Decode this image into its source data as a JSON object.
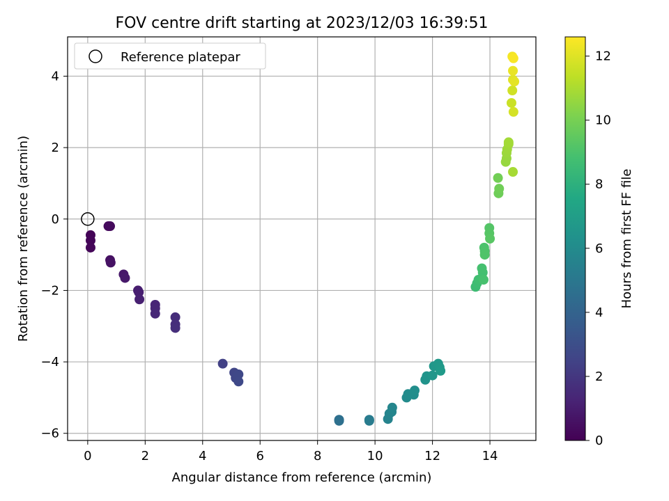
{
  "chart_data": {
    "type": "scatter",
    "title": "FOV centre drift starting at 2023/12/03 16:39:51",
    "xlabel": "Angular distance from reference (arcmin)",
    "ylabel": "Rotation from reference (arcmin)",
    "xlim": [
      -0.7,
      15.6
    ],
    "ylim": [
      -6.2,
      5.1
    ],
    "xticks": [
      0,
      2,
      4,
      6,
      8,
      10,
      12,
      14
    ],
    "yticks": [
      -6,
      -4,
      -2,
      0,
      2,
      4
    ],
    "grid": true,
    "legend": {
      "placement": "top-left",
      "entries": [
        "Reference platepar"
      ]
    },
    "reference": {
      "x": 0,
      "y": 0
    },
    "colorbar": {
      "label": "Hours from first FF file",
      "range": [
        0,
        12.6
      ],
      "ticks": [
        0,
        2,
        4,
        6,
        8,
        10,
        12
      ],
      "colormap": "viridis"
    },
    "points": [
      {
        "x": 0.1,
        "y": -0.45,
        "c": 0.1
      },
      {
        "x": 0.1,
        "y": -0.6,
        "c": 0.15
      },
      {
        "x": 0.1,
        "y": -0.8,
        "c": 0.2
      },
      {
        "x": 0.72,
        "y": -0.2,
        "c": 0.3
      },
      {
        "x": 0.78,
        "y": -0.2,
        "c": 0.35
      },
      {
        "x": 0.78,
        "y": -1.15,
        "c": 0.55
      },
      {
        "x": 0.8,
        "y": -1.22,
        "c": 0.6
      },
      {
        "x": 1.25,
        "y": -1.55,
        "c": 0.8
      },
      {
        "x": 1.3,
        "y": -1.65,
        "c": 0.85
      },
      {
        "x": 1.75,
        "y": -2.0,
        "c": 1.0
      },
      {
        "x": 1.78,
        "y": -2.05,
        "c": 1.05
      },
      {
        "x": 1.8,
        "y": -2.25,
        "c": 1.1
      },
      {
        "x": 2.35,
        "y": -2.4,
        "c": 1.3
      },
      {
        "x": 2.35,
        "y": -2.5,
        "c": 1.35
      },
      {
        "x": 2.35,
        "y": -2.65,
        "c": 1.4
      },
      {
        "x": 3.05,
        "y": -2.75,
        "c": 1.6
      },
      {
        "x": 3.05,
        "y": -2.95,
        "c": 1.65
      },
      {
        "x": 3.05,
        "y": -3.05,
        "c": 1.7
      },
      {
        "x": 4.7,
        "y": -4.05,
        "c": 2.4
      },
      {
        "x": 5.1,
        "y": -4.3,
        "c": 2.6
      },
      {
        "x": 5.15,
        "y": -4.45,
        "c": 2.65
      },
      {
        "x": 5.25,
        "y": -4.35,
        "c": 2.7
      },
      {
        "x": 5.25,
        "y": -4.55,
        "c": 2.75
      },
      {
        "x": 8.75,
        "y": -5.62,
        "c": 4.6
      },
      {
        "x": 8.75,
        "y": -5.65,
        "c": 4.62
      },
      {
        "x": 9.8,
        "y": -5.62,
        "c": 5.2
      },
      {
        "x": 9.8,
        "y": -5.65,
        "c": 5.22
      },
      {
        "x": 10.45,
        "y": -5.6,
        "c": 5.6
      },
      {
        "x": 10.5,
        "y": -5.45,
        "c": 5.65
      },
      {
        "x": 10.58,
        "y": -5.4,
        "c": 5.7
      },
      {
        "x": 10.6,
        "y": -5.28,
        "c": 5.75
      },
      {
        "x": 11.1,
        "y": -5.0,
        "c": 6.0
      },
      {
        "x": 11.15,
        "y": -4.9,
        "c": 6.05
      },
      {
        "x": 11.35,
        "y": -4.92,
        "c": 6.1
      },
      {
        "x": 11.38,
        "y": -4.8,
        "c": 6.15
      },
      {
        "x": 11.75,
        "y": -4.5,
        "c": 6.4
      },
      {
        "x": 11.8,
        "y": -4.4,
        "c": 6.45
      },
      {
        "x": 12.0,
        "y": -4.38,
        "c": 6.6
      },
      {
        "x": 12.05,
        "y": -4.12,
        "c": 6.65
      },
      {
        "x": 12.2,
        "y": -4.05,
        "c": 6.7
      },
      {
        "x": 12.25,
        "y": -4.15,
        "c": 6.75
      },
      {
        "x": 12.28,
        "y": -4.25,
        "c": 6.8
      },
      {
        "x": 13.5,
        "y": -1.9,
        "c": 8.6
      },
      {
        "x": 13.55,
        "y": -1.8,
        "c": 8.65
      },
      {
        "x": 13.6,
        "y": -1.7,
        "c": 8.7
      },
      {
        "x": 13.72,
        "y": -1.65,
        "c": 8.75
      },
      {
        "x": 13.75,
        "y": -1.5,
        "c": 8.8
      },
      {
        "x": 13.72,
        "y": -1.38,
        "c": 8.85
      },
      {
        "x": 13.78,
        "y": -1.7,
        "c": 8.9
      },
      {
        "x": 13.8,
        "y": -0.8,
        "c": 9.0
      },
      {
        "x": 13.82,
        "y": -0.9,
        "c": 9.05
      },
      {
        "x": 13.82,
        "y": -1.0,
        "c": 9.1
      },
      {
        "x": 13.98,
        "y": -0.25,
        "c": 9.2
      },
      {
        "x": 13.98,
        "y": -0.4,
        "c": 9.25
      },
      {
        "x": 14.0,
        "y": -0.55,
        "c": 9.3
      },
      {
        "x": 14.3,
        "y": 0.72,
        "c": 9.8
      },
      {
        "x": 14.32,
        "y": 0.85,
        "c": 9.85
      },
      {
        "x": 14.28,
        "y": 1.15,
        "c": 9.9
      },
      {
        "x": 14.55,
        "y": 1.6,
        "c": 10.6
      },
      {
        "x": 14.58,
        "y": 1.7,
        "c": 10.65
      },
      {
        "x": 14.58,
        "y": 1.85,
        "c": 10.7
      },
      {
        "x": 14.6,
        "y": 1.95,
        "c": 10.75
      },
      {
        "x": 14.65,
        "y": 2.1,
        "c": 10.8
      },
      {
        "x": 14.65,
        "y": 2.15,
        "c": 10.85
      },
      {
        "x": 14.8,
        "y": 1.32,
        "c": 10.9
      },
      {
        "x": 14.75,
        "y": 3.25,
        "c": 11.6
      },
      {
        "x": 14.78,
        "y": 3.6,
        "c": 11.7
      },
      {
        "x": 14.82,
        "y": 3.0,
        "c": 11.8
      },
      {
        "x": 14.8,
        "y": 3.9,
        "c": 12.0
      },
      {
        "x": 14.85,
        "y": 3.85,
        "c": 12.1
      },
      {
        "x": 14.8,
        "y": 4.15,
        "c": 12.2
      },
      {
        "x": 14.78,
        "y": 4.55,
        "c": 12.4
      },
      {
        "x": 14.82,
        "y": 4.5,
        "c": 12.5
      }
    ]
  }
}
